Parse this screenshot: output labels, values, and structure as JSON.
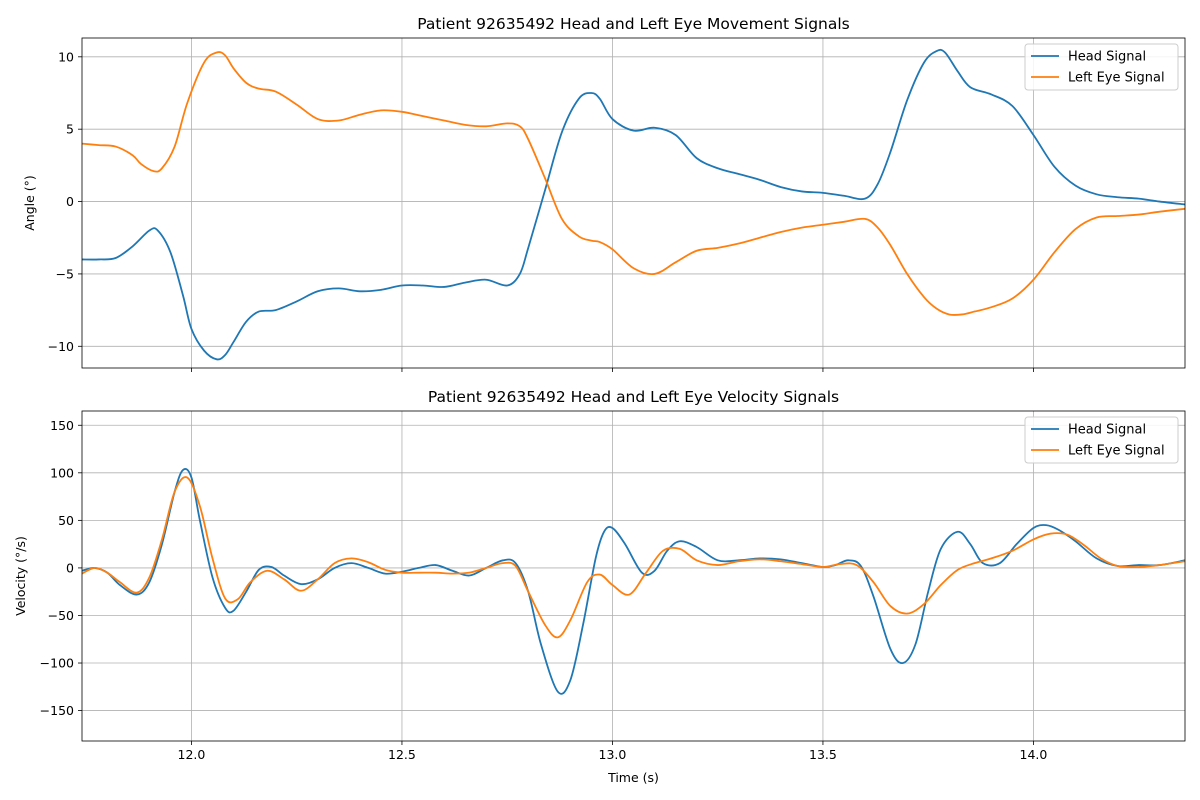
{
  "chart_data": [
    {
      "type": "line",
      "title": "Patient 92635492 Head and Left Eye Movement Signals",
      "xlabel": "",
      "ylabel": "Angle (°)",
      "xlim": [
        11.74,
        14.36
      ],
      "ylim": [
        -11.5,
        11.3
      ],
      "xticks": [
        12.0,
        12.5,
        13.0,
        13.5,
        14.0
      ],
      "xtick_labels": [
        "",
        "",
        "",
        "",
        ""
      ],
      "yticks": [
        -10,
        -5,
        0,
        5,
        10
      ],
      "ytick_labels": [
        "−10",
        "−5",
        "0",
        "5",
        "10"
      ],
      "grid": true,
      "legend": "top-right",
      "series": [
        {
          "name": "Head Signal",
          "color": "#1f77b4",
          "x": [
            11.74,
            11.78,
            11.82,
            11.86,
            11.9,
            11.92,
            11.95,
            11.98,
            12.0,
            12.03,
            12.06,
            12.08,
            12.1,
            12.13,
            12.16,
            12.2,
            12.25,
            12.3,
            12.35,
            12.4,
            12.45,
            12.5,
            12.55,
            12.6,
            12.65,
            12.7,
            12.75,
            12.78,
            12.8,
            12.84,
            12.88,
            12.92,
            12.95,
            12.97,
            13.0,
            13.05,
            13.1,
            13.15,
            13.2,
            13.25,
            13.3,
            13.35,
            13.4,
            13.45,
            13.5,
            13.55,
            13.6,
            13.63,
            13.66,
            13.7,
            13.74,
            13.77,
            13.79,
            13.82,
            13.85,
            13.9,
            13.95,
            14.0,
            14.05,
            14.1,
            14.15,
            14.2,
            14.25,
            14.3,
            14.36
          ],
          "y": [
            -4.0,
            -4.0,
            -3.9,
            -3.1,
            -2.0,
            -2.0,
            -3.5,
            -6.5,
            -8.8,
            -10.3,
            -10.9,
            -10.6,
            -9.7,
            -8.3,
            -7.6,
            -7.5,
            -6.9,
            -6.2,
            -6.0,
            -6.2,
            -6.1,
            -5.8,
            -5.8,
            -5.9,
            -5.6,
            -5.4,
            -5.8,
            -5.0,
            -3.2,
            0.8,
            4.8,
            7.1,
            7.5,
            7.1,
            5.7,
            4.9,
            5.1,
            4.6,
            3.0,
            2.3,
            1.9,
            1.5,
            1.0,
            0.7,
            0.6,
            0.4,
            0.2,
            1.2,
            3.4,
            7.0,
            9.6,
            10.4,
            10.3,
            9.0,
            7.9,
            7.4,
            6.6,
            4.6,
            2.4,
            1.1,
            0.5,
            0.3,
            0.2,
            0.0,
            -0.2
          ]
        },
        {
          "name": "Left Eye Signal",
          "color": "#ff7f0e",
          "x": [
            11.74,
            11.78,
            11.82,
            11.86,
            11.88,
            11.91,
            11.93,
            11.96,
            11.99,
            12.03,
            12.06,
            12.08,
            12.1,
            12.13,
            12.16,
            12.2,
            12.25,
            12.3,
            12.35,
            12.4,
            12.45,
            12.5,
            12.55,
            12.6,
            12.65,
            12.7,
            12.75,
            12.78,
            12.8,
            12.84,
            12.88,
            12.92,
            12.95,
            12.97,
            13.0,
            13.05,
            13.1,
            13.15,
            13.2,
            13.25,
            13.3,
            13.35,
            13.4,
            13.45,
            13.5,
            13.55,
            13.6,
            13.63,
            13.66,
            13.7,
            13.74,
            13.77,
            13.8,
            13.83,
            13.86,
            13.9,
            13.95,
            14.0,
            14.05,
            14.1,
            14.15,
            14.2,
            14.25,
            14.3,
            14.36
          ],
          "y": [
            4.0,
            3.9,
            3.8,
            3.2,
            2.6,
            2.1,
            2.3,
            3.8,
            6.8,
            9.6,
            10.3,
            10.1,
            9.2,
            8.2,
            7.8,
            7.6,
            6.7,
            5.7,
            5.6,
            6.0,
            6.3,
            6.2,
            5.9,
            5.6,
            5.3,
            5.2,
            5.4,
            5.2,
            4.3,
            1.6,
            -1.2,
            -2.4,
            -2.7,
            -2.8,
            -3.3,
            -4.6,
            -5.0,
            -4.2,
            -3.4,
            -3.2,
            -2.9,
            -2.5,
            -2.1,
            -1.8,
            -1.6,
            -1.4,
            -1.2,
            -1.8,
            -3.0,
            -5.0,
            -6.6,
            -7.4,
            -7.8,
            -7.8,
            -7.6,
            -7.3,
            -6.7,
            -5.4,
            -3.5,
            -1.9,
            -1.1,
            -1.0,
            -0.9,
            -0.7,
            -0.5
          ]
        }
      ]
    },
    {
      "type": "line",
      "title": "Patient 92635492 Head and Left Eye Velocity Signals",
      "xlabel": "Time (s)",
      "ylabel": "Velocity (°/s)",
      "xlim": [
        11.74,
        14.36
      ],
      "ylim": [
        -182,
        165
      ],
      "xticks": [
        12.0,
        12.5,
        13.0,
        13.5,
        14.0
      ],
      "xtick_labels": [
        "12.0",
        "12.5",
        "13.0",
        "13.5",
        "14.0"
      ],
      "yticks": [
        -150,
        -100,
        -50,
        0,
        50,
        100,
        150
      ],
      "ytick_labels": [
        "−150",
        "−100",
        "−50",
        "0",
        "50",
        "100",
        "150"
      ],
      "grid": true,
      "legend": "top-right",
      "series": [
        {
          "name": "Head Signal",
          "color": "#1f77b4",
          "x": [
            11.74,
            11.77,
            11.8,
            11.83,
            11.87,
            11.9,
            11.93,
            11.96,
            11.98,
            12.0,
            12.02,
            12.05,
            12.08,
            12.1,
            12.13,
            12.16,
            12.19,
            12.22,
            12.26,
            12.3,
            12.34,
            12.38,
            12.42,
            12.46,
            12.5,
            12.54,
            12.58,
            12.62,
            12.66,
            12.7,
            12.74,
            12.77,
            12.8,
            12.83,
            12.87,
            12.9,
            12.93,
            12.96,
            12.98,
            13.0,
            13.03,
            13.07,
            13.1,
            13.13,
            13.16,
            13.2,
            13.25,
            13.3,
            13.35,
            13.4,
            13.45,
            13.5,
            13.53,
            13.56,
            13.59,
            13.62,
            13.66,
            13.69,
            13.72,
            13.75,
            13.78,
            13.82,
            13.85,
            13.88,
            13.92,
            13.96,
            14.0,
            14.03,
            14.06,
            14.1,
            14.15,
            14.2,
            14.25,
            14.3,
            14.36
          ],
          "y": [
            -3,
            0,
            -5,
            -18,
            -28,
            -15,
            25,
            80,
            103,
            95,
            50,
            -10,
            -42,
            -45,
            -25,
            -2,
            1,
            -8,
            -17,
            -12,
            0,
            5,
            0,
            -6,
            -4,
            0,
            3,
            -3,
            -8,
            0,
            8,
            5,
            -25,
            -80,
            -130,
            -118,
            -60,
            10,
            38,
            42,
            25,
            -5,
            -3,
            18,
            28,
            22,
            8,
            8,
            10,
            9,
            5,
            1,
            3,
            8,
            2,
            -30,
            -85,
            -100,
            -80,
            -25,
            20,
            38,
            25,
            5,
            5,
            25,
            42,
            45,
            40,
            28,
            10,
            2,
            3,
            3,
            8
          ]
        },
        {
          "name": "Left Eye Signal",
          "color": "#ff7f0e",
          "x": [
            11.74,
            11.77,
            11.8,
            11.83,
            11.87,
            11.9,
            11.93,
            11.96,
            11.99,
            12.02,
            12.05,
            12.08,
            12.11,
            12.14,
            12.18,
            12.22,
            12.26,
            12.3,
            12.34,
            12.38,
            12.42,
            12.46,
            12.5,
            12.54,
            12.58,
            12.62,
            12.66,
            12.7,
            12.74,
            12.77,
            12.8,
            12.84,
            12.87,
            12.9,
            12.94,
            12.97,
            13.0,
            13.04,
            13.08,
            13.12,
            13.16,
            13.2,
            13.25,
            13.3,
            13.35,
            13.4,
            13.45,
            13.5,
            13.54,
            13.58,
            13.62,
            13.66,
            13.7,
            13.74,
            13.78,
            13.82,
            13.86,
            13.9,
            13.95,
            14.0,
            14.04,
            14.08,
            14.12,
            14.16,
            14.2,
            14.25,
            14.3,
            14.36
          ],
          "y": [
            -6,
            0,
            -5,
            -15,
            -26,
            -10,
            30,
            80,
            95,
            65,
            10,
            -32,
            -33,
            -15,
            -3,
            -12,
            -24,
            -12,
            5,
            10,
            6,
            -2,
            -5,
            -5,
            -5,
            -6,
            -5,
            0,
            5,
            2,
            -25,
            -60,
            -73,
            -55,
            -15,
            -7,
            -18,
            -28,
            -5,
            18,
            20,
            8,
            3,
            7,
            9,
            7,
            4,
            1,
            4,
            3,
            -15,
            -40,
            -48,
            -38,
            -18,
            -2,
            5,
            10,
            18,
            30,
            36,
            35,
            24,
            10,
            2,
            1,
            3,
            7
          ]
        }
      ]
    }
  ]
}
